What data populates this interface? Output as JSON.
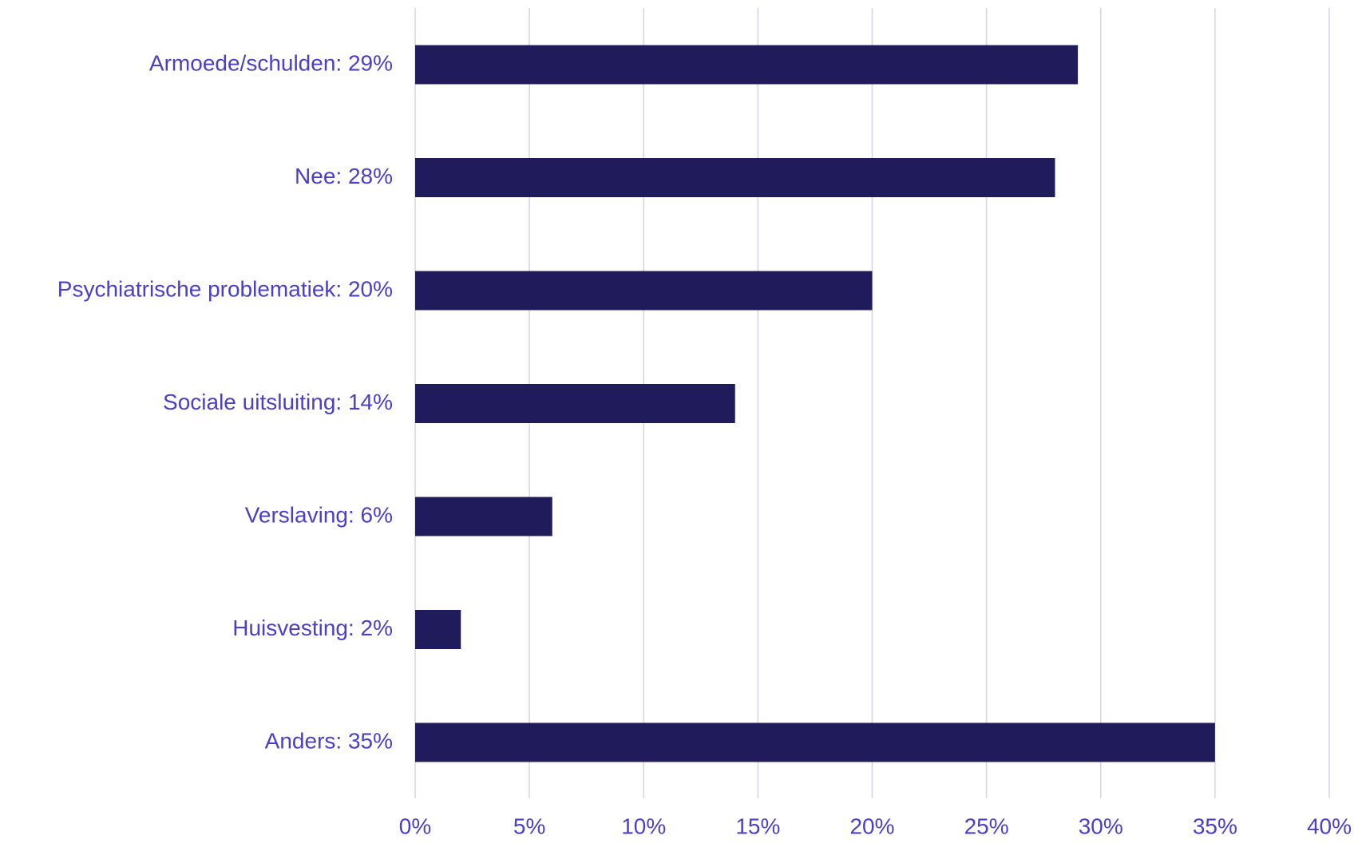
{
  "chart_data": {
    "type": "barh",
    "categories": [
      "Armoede/schulden: 29%",
      "Nee: 28%",
      "Psychiatrische problematiek: 20%",
      "Sociale uitsluiting: 14%",
      "Verslaving: 6%",
      "Huisvesting: 2%",
      "Anders: 35%"
    ],
    "values": [
      29,
      28,
      20,
      14,
      6,
      2,
      35
    ],
    "color": "#201c5c",
    "xlim": [
      0,
      40
    ],
    "xticks": [
      {
        "value": 0,
        "label": "0%"
      },
      {
        "value": 5,
        "label": "5%"
      },
      {
        "value": 10,
        "label": "10%"
      },
      {
        "value": 15,
        "label": "15%"
      },
      {
        "value": 20,
        "label": "20%"
      },
      {
        "value": 25,
        "label": "25%"
      },
      {
        "value": 30,
        "label": "30%"
      },
      {
        "value": 35,
        "label": "35%"
      },
      {
        "value": 40,
        "label": "40%"
      }
    ],
    "grid": true
  }
}
